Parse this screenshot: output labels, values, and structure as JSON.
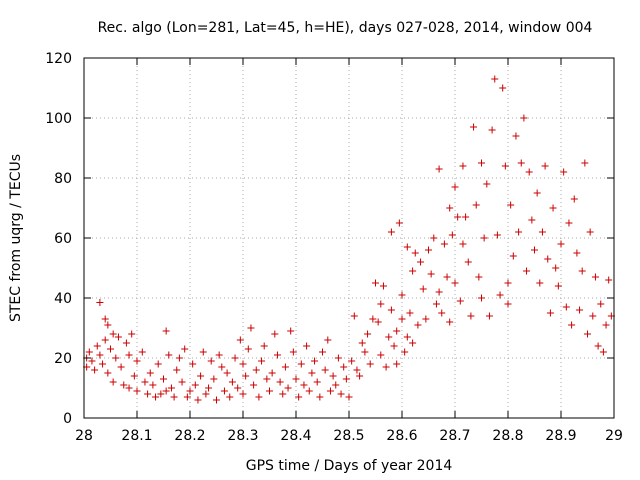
{
  "chart_data": {
    "type": "scatter",
    "title": "Rec. algo (Lon=281, Lat=45, h=HE), days 027-028, 2014, window 004",
    "xlabel": "GPS time / Days of year 2014",
    "ylabel": "STEC from uqrg / TECUs",
    "xlim": [
      28,
      29
    ],
    "ylim": [
      0,
      120
    ],
    "x_ticks": [
      "28",
      "28.1",
      "28.2",
      "28.3",
      "28.4",
      "28.5",
      "28.6",
      "28.7",
      "28.8",
      "28.9",
      "29"
    ],
    "y_ticks": [
      "0",
      "20",
      "40",
      "60",
      "80",
      "100",
      "120"
    ],
    "grid": true,
    "legend": "none",
    "marker": "plus",
    "color": "#cc0000",
    "series": [
      {
        "points": [
          [
            28.005,
            20
          ],
          [
            28.005,
            17
          ],
          [
            28.01,
            22
          ],
          [
            28.015,
            19
          ],
          [
            28.02,
            16
          ],
          [
            28.025,
            24
          ],
          [
            28.03,
            38.5
          ],
          [
            28.03,
            21
          ],
          [
            28.035,
            18
          ],
          [
            28.04,
            33
          ],
          [
            28.04,
            26
          ],
          [
            28.045,
            31
          ],
          [
            28.045,
            15
          ],
          [
            28.05,
            23
          ],
          [
            28.055,
            28
          ],
          [
            28.055,
            12
          ],
          [
            28.06,
            20
          ],
          [
            28.065,
            27
          ],
          [
            28.07,
            17
          ],
          [
            28.075,
            11
          ],
          [
            28.08,
            25
          ],
          [
            28.085,
            21
          ],
          [
            28.085,
            10
          ],
          [
            28.09,
            28
          ],
          [
            28.095,
            14
          ],
          [
            28.1,
            19
          ],
          [
            28.1,
            9
          ],
          [
            28.11,
            22
          ],
          [
            28.115,
            12
          ],
          [
            28.12,
            8
          ],
          [
            28.125,
            15
          ],
          [
            28.13,
            11
          ],
          [
            28.135,
            7
          ],
          [
            28.14,
            18
          ],
          [
            28.145,
            8
          ],
          [
            28.15,
            13
          ],
          [
            28.155,
            29
          ],
          [
            28.155,
            9
          ],
          [
            28.16,
            21
          ],
          [
            28.165,
            10
          ],
          [
            28.17,
            7
          ],
          [
            28.175,
            16
          ],
          [
            28.18,
            20
          ],
          [
            28.185,
            12
          ],
          [
            28.19,
            23
          ],
          [
            28.195,
            7
          ],
          [
            28.2,
            9
          ],
          [
            28.205,
            18
          ],
          [
            28.21,
            11
          ],
          [
            28.215,
            6
          ],
          [
            28.22,
            14
          ],
          [
            28.225,
            22
          ],
          [
            28.23,
            8
          ],
          [
            28.235,
            10
          ],
          [
            28.24,
            19
          ],
          [
            28.245,
            13
          ],
          [
            28.25,
            6
          ],
          [
            28.255,
            21
          ],
          [
            28.26,
            17
          ],
          [
            28.265,
            9
          ],
          [
            28.27,
            15
          ],
          [
            28.275,
            7
          ],
          [
            28.28,
            12
          ],
          [
            28.285,
            20
          ],
          [
            28.29,
            10
          ],
          [
            28.295,
            26
          ],
          [
            28.3,
            18
          ],
          [
            28.3,
            8
          ],
          [
            28.305,
            14
          ],
          [
            28.31,
            23
          ],
          [
            28.315,
            30
          ],
          [
            28.32,
            11
          ],
          [
            28.325,
            16
          ],
          [
            28.33,
            7
          ],
          [
            28.335,
            19
          ],
          [
            28.34,
            24
          ],
          [
            28.345,
            13
          ],
          [
            28.35,
            9
          ],
          [
            28.355,
            15
          ],
          [
            28.36,
            28
          ],
          [
            28.365,
            21
          ],
          [
            28.37,
            12
          ],
          [
            28.375,
            8
          ],
          [
            28.38,
            17
          ],
          [
            28.385,
            10
          ],
          [
            28.39,
            29
          ],
          [
            28.395,
            22
          ],
          [
            28.4,
            13
          ],
          [
            28.405,
            7
          ],
          [
            28.41,
            18
          ],
          [
            28.415,
            11
          ],
          [
            28.42,
            24
          ],
          [
            28.425,
            9
          ],
          [
            28.43,
            15
          ],
          [
            28.435,
            19
          ],
          [
            28.44,
            12
          ],
          [
            28.445,
            7
          ],
          [
            28.45,
            22
          ],
          [
            28.455,
            16
          ],
          [
            28.46,
            26
          ],
          [
            28.465,
            9
          ],
          [
            28.47,
            14
          ],
          [
            28.475,
            11
          ],
          [
            28.48,
            20
          ],
          [
            28.485,
            8
          ],
          [
            28.49,
            17
          ],
          [
            28.495,
            13
          ],
          [
            28.5,
            7
          ],
          [
            28.505,
            19
          ],
          [
            28.51,
            34
          ],
          [
            28.515,
            16
          ],
          [
            28.52,
            14
          ],
          [
            28.525,
            25
          ],
          [
            28.53,
            22
          ],
          [
            28.535,
            28
          ],
          [
            28.54,
            18
          ],
          [
            28.545,
            33
          ],
          [
            28.55,
            45
          ],
          [
            28.555,
            32
          ],
          [
            28.56,
            38
          ],
          [
            28.56,
            21
          ],
          [
            28.565,
            44
          ],
          [
            28.57,
            17
          ],
          [
            28.575,
            27
          ],
          [
            28.58,
            62
          ],
          [
            28.58,
            36
          ],
          [
            28.585,
            24
          ],
          [
            28.59,
            29
          ],
          [
            28.59,
            18
          ],
          [
            28.595,
            65
          ],
          [
            28.6,
            41
          ],
          [
            28.6,
            33
          ],
          [
            28.605,
            22
          ],
          [
            28.61,
            57
          ],
          [
            28.61,
            27
          ],
          [
            28.615,
            35
          ],
          [
            28.62,
            49
          ],
          [
            28.62,
            25
          ],
          [
            28.625,
            55
          ],
          [
            28.63,
            31
          ],
          [
            28.635,
            52
          ],
          [
            28.64,
            43
          ],
          [
            28.645,
            33
          ],
          [
            28.65,
            56
          ],
          [
            28.655,
            48
          ],
          [
            28.66,
            60
          ],
          [
            28.665,
            38
          ],
          [
            28.67,
            83
          ],
          [
            28.67,
            42
          ],
          [
            28.675,
            35
          ],
          [
            28.68,
            58
          ],
          [
            28.685,
            47
          ],
          [
            28.69,
            70
          ],
          [
            28.69,
            32
          ],
          [
            28.695,
            61
          ],
          [
            28.7,
            77
          ],
          [
            28.7,
            45
          ],
          [
            28.705,
            67
          ],
          [
            28.71,
            39
          ],
          [
            28.715,
            84
          ],
          [
            28.715,
            58
          ],
          [
            28.72,
            67
          ],
          [
            28.725,
            52
          ],
          [
            28.73,
            34
          ],
          [
            28.735,
            97
          ],
          [
            28.74,
            71
          ],
          [
            28.745,
            47
          ],
          [
            28.75,
            85
          ],
          [
            28.75,
            40
          ],
          [
            28.755,
            60
          ],
          [
            28.76,
            78
          ],
          [
            28.765,
            34
          ],
          [
            28.77,
            96
          ],
          [
            28.775,
            113
          ],
          [
            28.78,
            61
          ],
          [
            28.785,
            41
          ],
          [
            28.79,
            110
          ],
          [
            28.795,
            84
          ],
          [
            28.8,
            45
          ],
          [
            28.8,
            38
          ],
          [
            28.805,
            71
          ],
          [
            28.81,
            54
          ],
          [
            28.815,
            94
          ],
          [
            28.82,
            62
          ],
          [
            28.825,
            85
          ],
          [
            28.83,
            100
          ],
          [
            28.835,
            49
          ],
          [
            28.84,
            82
          ],
          [
            28.845,
            66
          ],
          [
            28.85,
            56
          ],
          [
            28.855,
            75
          ],
          [
            28.86,
            45
          ],
          [
            28.865,
            62
          ],
          [
            28.87,
            84
          ],
          [
            28.875,
            53
          ],
          [
            28.88,
            35
          ],
          [
            28.885,
            70
          ],
          [
            28.89,
            50
          ],
          [
            28.895,
            44
          ],
          [
            28.9,
            58
          ],
          [
            28.905,
            82
          ],
          [
            28.91,
            37
          ],
          [
            28.915,
            65
          ],
          [
            28.92,
            31
          ],
          [
            28.925,
            73
          ],
          [
            28.93,
            55
          ],
          [
            28.935,
            36
          ],
          [
            28.94,
            49
          ],
          [
            28.945,
            85
          ],
          [
            28.95,
            28
          ],
          [
            28.955,
            62
          ],
          [
            28.96,
            34
          ],
          [
            28.965,
            47
          ],
          [
            28.97,
            24
          ],
          [
            28.975,
            38
          ],
          [
            28.98,
            22
          ],
          [
            28.985,
            31
          ],
          [
            28.99,
            46
          ],
          [
            28.995,
            34
          ]
        ]
      }
    ]
  }
}
